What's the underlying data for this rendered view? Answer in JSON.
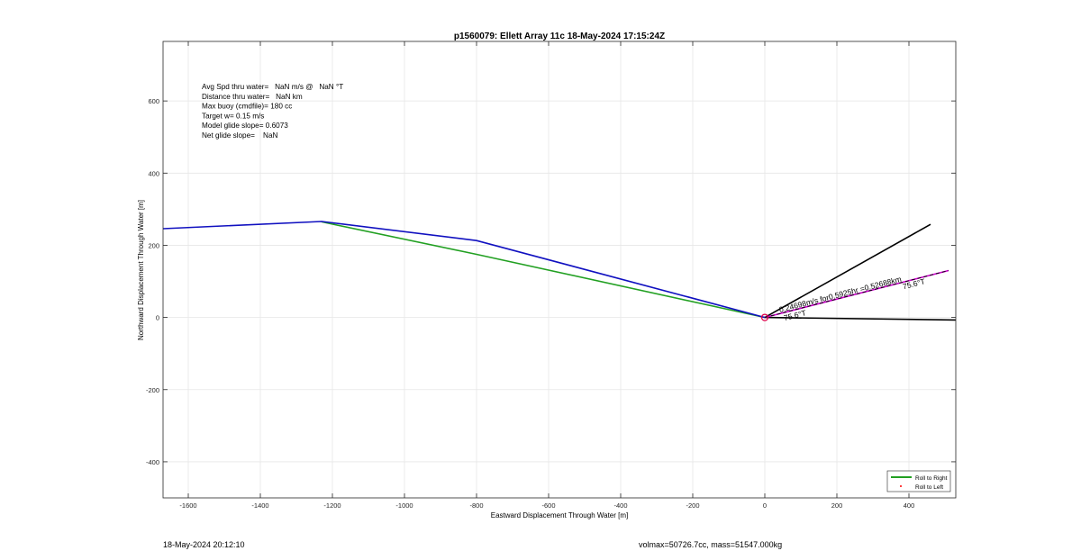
{
  "chart_data": {
    "type": "line",
    "title": "p1560079: Ellett Array 11c 18-May-2024 17:15:24Z",
    "xlabel": "Eastward Displacement Through Water [m]",
    "ylabel": "Northward Displacement Through Water [m]",
    "xlim": [
      -1670,
      530
    ],
    "ylim": [
      -500,
      765
    ],
    "xticks": [
      -1600,
      -1400,
      -1200,
      -1000,
      -800,
      -600,
      -400,
      -200,
      0,
      200,
      400
    ],
    "yticks": [
      -400,
      -200,
      0,
      200,
      400,
      600
    ],
    "grid": true,
    "legend_position": "bottom-right",
    "series": [
      {
        "name": "Roll to Right",
        "color": "#22a022",
        "x": [
          -1230,
          -800,
          0
        ],
        "y": [
          265,
          175,
          0
        ]
      },
      {
        "name": "Roll to Left",
        "color": "#ff0000",
        "x": [],
        "y": []
      },
      {
        "color": "#1010c0",
        "x": [
          -1670,
          -1230,
          -800,
          0
        ],
        "y": [
          246,
          266,
          213,
          0
        ]
      },
      {
        "color": "#000000",
        "x": [
          0,
          460
        ],
        "y": [
          0,
          258
        ]
      },
      {
        "color": "#000000",
        "x": [
          0,
          530
        ],
        "y": [
          0,
          -7
        ]
      },
      {
        "color": "#cc00cc",
        "dashed": true,
        "x": [
          0,
          510
        ],
        "y": [
          0,
          130
        ]
      }
    ],
    "marker": {
      "x": 0,
      "y": 0,
      "color": "#e0004a"
    },
    "info_lines": [
      "Avg Spd thru water=   NaN m/s @   NaN °T",
      "Distance thru water=   NaN km",
      "Max buoy (cmdfile)= 180 cc",
      "Target w= 0.15 m/s",
      "Model glide slope= 0.6073",
      "Net glide slope=    NaN"
    ],
    "annotations": [
      {
        "text": "0.24698m/s for0.5925hr =0.52688km",
        "x": 42,
        "y": 14,
        "angle": -14.3
      },
      {
        "text": "75.6°T",
        "x": 385,
        "y": 78,
        "angle": -14.3
      },
      {
        "text": "75.6°T",
        "x": 55,
        "y": -9,
        "angle": -14.3
      }
    ]
  },
  "footer": {
    "left": "18-May-2024 20:12:10",
    "right": "volmax=50726.7cc, mass=51547.000kg"
  }
}
